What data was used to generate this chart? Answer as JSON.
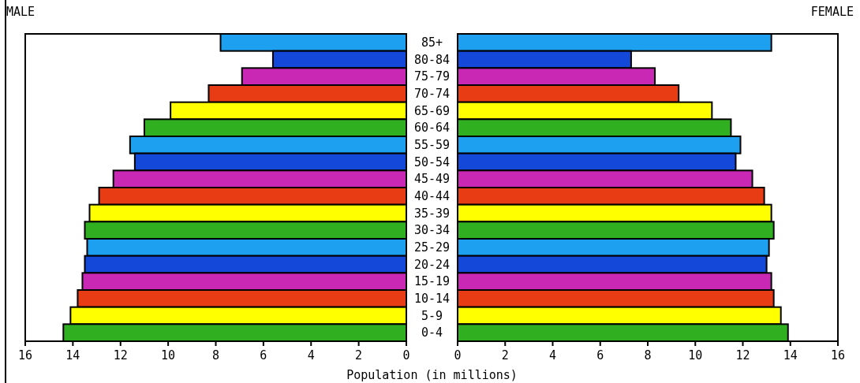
{
  "chart_data": [
    {
      "type": "bar",
      "orientation": "horizontal",
      "title": "MALE",
      "xlabel": "Population (in millions)",
      "categories": [
        "85+",
        "80-84",
        "75-79",
        "70-74",
        "65-69",
        "60-64",
        "55-59",
        "50-54",
        "45-49",
        "40-44",
        "35-39",
        "30-34",
        "25-29",
        "20-24",
        "15-19",
        "10-14",
        "5-9",
        "0-4"
      ],
      "values": [
        7.8,
        5.6,
        6.9,
        8.3,
        9.9,
        11.0,
        11.6,
        11.4,
        12.3,
        12.9,
        13.3,
        13.5,
        13.4,
        13.5,
        13.6,
        13.8,
        14.1,
        14.4
      ],
      "colors": [
        "#1ea0f0",
        "#1448d8",
        "#c828b4",
        "#e83c14",
        "#ffff00",
        "#30b020",
        "#1ea0f0",
        "#1448d8",
        "#c828b4",
        "#e83c14",
        "#ffff00",
        "#30b020",
        "#1ea0f0",
        "#1448d8",
        "#c828b4",
        "#e83c14",
        "#ffff00",
        "#30b020"
      ],
      "xlim": [
        16,
        0
      ],
      "xticks": [
        16,
        14,
        12,
        10,
        8,
        6,
        4,
        2,
        0
      ]
    },
    {
      "type": "bar",
      "orientation": "horizontal",
      "title": "FEMALE",
      "values": [
        13.2,
        7.3,
        8.3,
        9.3,
        10.7,
        11.5,
        11.9,
        11.7,
        12.4,
        12.9,
        13.2,
        13.3,
        13.1,
        13.0,
        13.2,
        13.3,
        13.6,
        13.9
      ],
      "colors": [
        "#1ea0f0",
        "#1448d8",
        "#c828b4",
        "#e83c14",
        "#ffff00",
        "#30b020",
        "#1ea0f0",
        "#1448d8",
        "#c828b4",
        "#e83c14",
        "#ffff00",
        "#30b020",
        "#1ea0f0",
        "#1448d8",
        "#c828b4",
        "#e83c14",
        "#ffff00",
        "#30b020"
      ],
      "xlim": [
        0,
        16
      ],
      "xticks": [
        0,
        2,
        4,
        6,
        8,
        10,
        12,
        14,
        16
      ]
    }
  ]
}
